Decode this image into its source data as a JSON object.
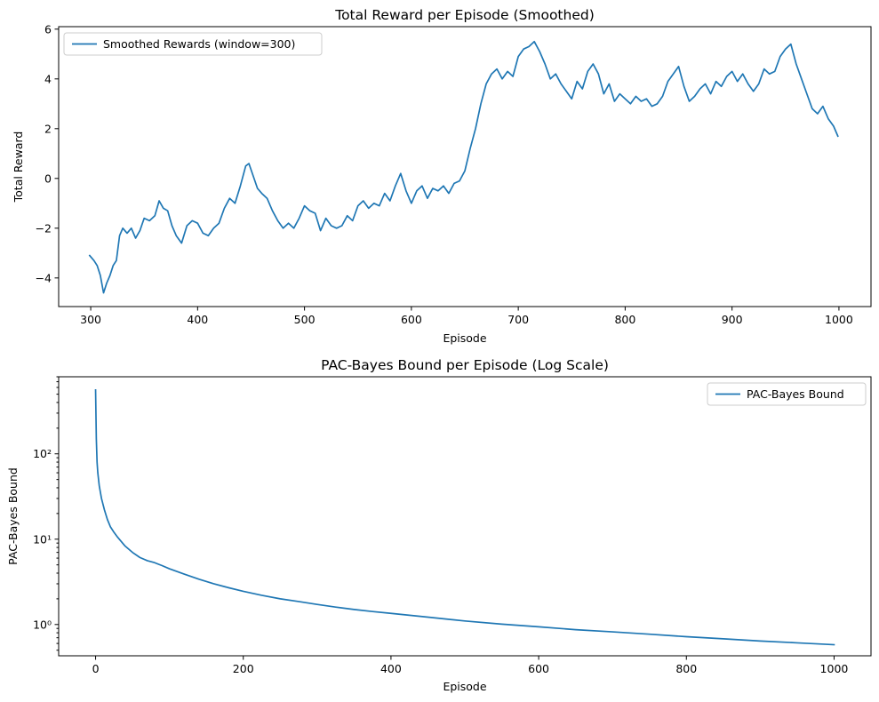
{
  "chart_data": [
    {
      "type": "line",
      "title": "Total Reward per Episode (Smoothed)",
      "xlabel": "Episode",
      "ylabel": "Total Reward",
      "xlim": [
        270,
        1030
      ],
      "ylim": [
        -5.15,
        6.1
      ],
      "xticks": [
        300,
        400,
        500,
        600,
        700,
        800,
        900,
        1000
      ],
      "xtick_labels": [
        "300",
        "400",
        "500",
        "600",
        "700",
        "800",
        "900",
        "1000"
      ],
      "yticks": [
        -4,
        -2,
        0,
        2,
        4,
        6
      ],
      "ytick_labels": [
        "−4",
        "−2",
        "0",
        "2",
        "4",
        "6"
      ],
      "yscale": "linear",
      "grid": false,
      "legend_position": "upper-left",
      "series": [
        {
          "name": "Smoothed Rewards (window=300)",
          "color": "#1f77b4",
          "x": [
            299,
            303,
            306,
            309,
            312,
            315,
            318,
            321,
            324,
            327,
            330,
            334,
            338,
            342,
            346,
            350,
            355,
            360,
            364,
            368,
            372,
            376,
            380,
            385,
            390,
            395,
            400,
            405,
            410,
            415,
            420,
            425,
            430,
            435,
            440,
            445,
            448,
            452,
            456,
            460,
            465,
            470,
            475,
            480,
            485,
            490,
            495,
            500,
            505,
            510,
            515,
            520,
            525,
            530,
            535,
            540,
            545,
            550,
            555,
            560,
            565,
            570,
            575,
            580,
            585,
            590,
            595,
            600,
            605,
            610,
            615,
            620,
            625,
            630,
            635,
            640,
            645,
            650,
            655,
            660,
            665,
            670,
            675,
            680,
            685,
            690,
            695,
            700,
            705,
            710,
            715,
            720,
            725,
            730,
            735,
            740,
            745,
            750,
            755,
            760,
            765,
            770,
            775,
            780,
            785,
            790,
            795,
            800,
            805,
            810,
            815,
            820,
            825,
            830,
            835,
            840,
            845,
            850,
            855,
            860,
            865,
            870,
            875,
            880,
            885,
            890,
            895,
            900,
            905,
            910,
            915,
            920,
            925,
            930,
            935,
            940,
            945,
            950,
            955,
            960,
            965,
            970,
            975,
            980,
            985,
            990,
            995,
            999
          ],
          "values": [
            -3.1,
            -3.3,
            -3.5,
            -3.9,
            -4.6,
            -4.2,
            -3.9,
            -3.5,
            -3.3,
            -2.3,
            -2.0,
            -2.2,
            -2.0,
            -2.4,
            -2.1,
            -1.6,
            -1.7,
            -1.5,
            -0.9,
            -1.2,
            -1.3,
            -1.9,
            -2.3,
            -2.6,
            -1.9,
            -1.7,
            -1.8,
            -2.2,
            -2.3,
            -2.0,
            -1.8,
            -1.2,
            -0.8,
            -1.0,
            -0.3,
            0.5,
            0.6,
            0.1,
            -0.4,
            -0.6,
            -0.8,
            -1.3,
            -1.7,
            -2.0,
            -1.8,
            -2.0,
            -1.6,
            -1.1,
            -1.3,
            -1.4,
            -2.1,
            -1.6,
            -1.9,
            -2.0,
            -1.9,
            -1.5,
            -1.7,
            -1.1,
            -0.9,
            -1.2,
            -1.0,
            -1.1,
            -0.6,
            -0.9,
            -0.3,
            0.2,
            -0.5,
            -1.0,
            -0.5,
            -0.3,
            -0.8,
            -0.4,
            -0.5,
            -0.3,
            -0.6,
            -0.2,
            -0.1,
            0.3,
            1.2,
            2.0,
            3.0,
            3.8,
            4.2,
            4.4,
            4.0,
            4.3,
            4.1,
            4.9,
            5.2,
            5.3,
            5.5,
            5.1,
            4.6,
            4.0,
            4.2,
            3.8,
            3.5,
            3.2,
            3.9,
            3.6,
            4.3,
            4.6,
            4.2,
            3.4,
            3.8,
            3.1,
            3.4,
            3.2,
            3.0,
            3.3,
            3.1,
            3.2,
            2.9,
            3.0,
            3.3,
            3.9,
            4.2,
            4.5,
            3.7,
            3.1,
            3.3,
            3.6,
            3.8,
            3.4,
            3.9,
            3.7,
            4.1,
            4.3,
            3.9,
            4.2,
            3.8,
            3.5,
            3.8,
            4.4,
            4.2,
            4.3,
            4.9,
            5.2,
            5.4,
            4.6,
            4.0,
            3.4,
            2.8,
            2.6,
            2.9,
            2.4,
            2.1,
            1.7
          ]
        }
      ]
    },
    {
      "type": "line",
      "title": "PAC-Bayes Bound per Episode (Log Scale)",
      "xlabel": "Episode",
      "ylabel": "PAC-Bayes Bound",
      "xlim": [
        -50,
        1050
      ],
      "ylim": [
        0.43,
        800
      ],
      "xticks": [
        0,
        200,
        400,
        600,
        800,
        1000
      ],
      "xtick_labels": [
        "0",
        "200",
        "400",
        "600",
        "800",
        "1000"
      ],
      "yticks": [
        1,
        10,
        100
      ],
      "ytick_labels": [
        "10⁰",
        "10¹",
        "10²"
      ],
      "yscale": "log",
      "grid": false,
      "legend_position": "upper-right",
      "series": [
        {
          "name": "PAC-Bayes Bound",
          "color": "#1f77b4",
          "x": [
            0,
            1,
            2,
            3,
            5,
            8,
            12,
            16,
            20,
            25,
            30,
            40,
            50,
            60,
            70,
            80,
            90,
            100,
            120,
            140,
            160,
            180,
            200,
            225,
            250,
            275,
            300,
            325,
            350,
            375,
            400,
            450,
            500,
            550,
            600,
            650,
            700,
            750,
            800,
            850,
            900,
            950,
            1000
          ],
          "values": [
            560,
            150,
            80,
            60,
            42,
            30,
            22,
            17,
            14,
            12,
            10.5,
            8.3,
            7.0,
            6.1,
            5.6,
            5.3,
            4.9,
            4.5,
            3.9,
            3.4,
            3.0,
            2.7,
            2.45,
            2.2,
            2.0,
            1.86,
            1.72,
            1.6,
            1.5,
            1.42,
            1.35,
            1.22,
            1.1,
            1.01,
            0.94,
            0.87,
            0.82,
            0.77,
            0.72,
            0.68,
            0.64,
            0.61,
            0.58
          ]
        }
      ]
    }
  ]
}
